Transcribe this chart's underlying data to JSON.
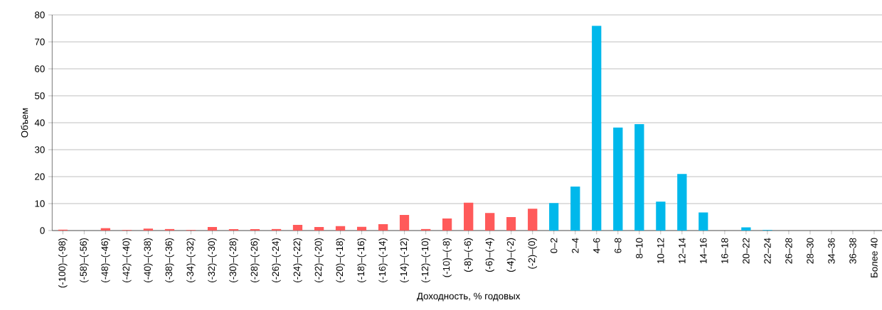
{
  "chart_data": {
    "type": "bar",
    "xlabel": "Доходность, % годовых",
    "ylabel": "Объем",
    "categories": [
      "(-100)–(-98)",
      "(-58)–(-56)",
      "(-48)–(-46)",
      "(-42)–(-40)",
      "(-40)–(-38)",
      "(-38)–(-36)",
      "(-34)–(-32)",
      "(-32)–(-30)",
      "(-30)–(-28)",
      "(-28)–(-26)",
      "(-26)–(-24)",
      "(-24)–(-22)",
      "(-22)–(-20)",
      "(-20)–(-18)",
      "(-18)–(-16)",
      "(-16)–(-14)",
      "(-14)–(-12)",
      "(-12)–(-10)",
      "(-10)–(-8)",
      "(-8)–(-6)",
      "(-6)–(-4)",
      "(-4)–(-2)",
      "(-2)–(0)",
      "0–2",
      "2–4",
      "4–6",
      "6–8",
      "8–10",
      "10–12",
      "12–14",
      "14–16",
      "16–18",
      "20–22",
      "22–24",
      "26–28",
      "28–30",
      "34–36",
      "36–38",
      "Более 40"
    ],
    "values": [
      0.3,
      0,
      0.9,
      0.2,
      0.7,
      0.6,
      0.2,
      1.3,
      0.5,
      0.5,
      0.6,
      2.1,
      1.3,
      1.7,
      1.4,
      2.4,
      5.8,
      0.6,
      4.5,
      10.3,
      6.5,
      5.0,
      8.1,
      10.2,
      16.3,
      76,
      38.2,
      39.5,
      10.7,
      21,
      6.7,
      0,
      1.2,
      0.2,
      0,
      0,
      0,
      0,
      0
    ],
    "colors": [
      "#ff5a5a",
      "#ff5a5a",
      "#ff5a5a",
      "#ff5a5a",
      "#ff5a5a",
      "#ff5a5a",
      "#ff5a5a",
      "#ff5a5a",
      "#ff5a5a",
      "#ff5a5a",
      "#ff5a5a",
      "#ff5a5a",
      "#ff5a5a",
      "#ff5a5a",
      "#ff5a5a",
      "#ff5a5a",
      "#ff5a5a",
      "#ff5a5a",
      "#ff5a5a",
      "#ff5a5a",
      "#ff5a5a",
      "#ff5a5a",
      "#ff5a5a",
      "#00b8eb",
      "#00b8eb",
      "#00b8eb",
      "#00b8eb",
      "#00b8eb",
      "#00b8eb",
      "#00b8eb",
      "#00b8eb",
      "#00b8eb",
      "#00b8eb",
      "#00b8eb",
      "#00b8eb",
      "#00b8eb",
      "#00b8eb",
      "#00b8eb",
      "#00b8eb"
    ],
    "ylim": [
      0,
      80
    ],
    "yticks": [
      0,
      10,
      20,
      30,
      40,
      50,
      60,
      70,
      80
    ],
    "grid": "y"
  }
}
